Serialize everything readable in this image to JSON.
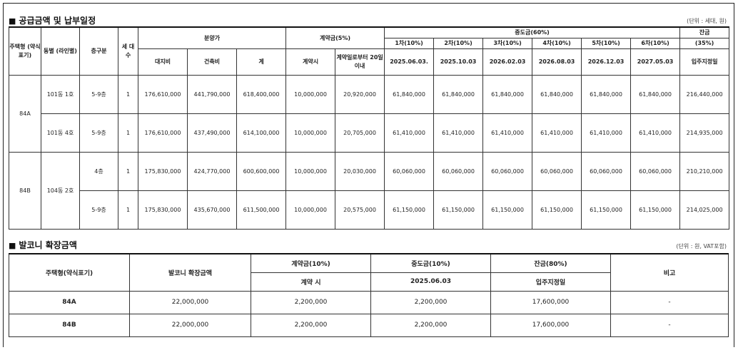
{
  "supply": {
    "title": "공급금액 및 납부일정",
    "unit": "(단위 : 세대, 원)",
    "headers": {
      "type": "주택형 (약식 표기)",
      "dong": "동별 (라인별)",
      "floor": "층구분",
      "households": "세 대 수",
      "price_group": "분양가",
      "land": "대지비",
      "building": "건축비",
      "total": "계",
      "contract_group": "계약금(5%)",
      "contract_at": "계약시",
      "contract_20": "계약일로부터 20일 이내",
      "interim_group": "중도금(60%)",
      "balance_group": "잔금",
      "balance_pct": "(35%)",
      "balance_date": "입주지정일"
    },
    "interim": [
      {
        "label": "1차(10%)",
        "date": "2025.06.03."
      },
      {
        "label": "2차(10%)",
        "date": "2025.10.03"
      },
      {
        "label": "3차(10%)",
        "date": "2026.02.03"
      },
      {
        "label": "4차(10%)",
        "date": "2026.08.03"
      },
      {
        "label": "5차(10%)",
        "date": "2026.12.03"
      },
      {
        "label": "6차(10%)",
        "date": "2027.05.03"
      }
    ],
    "groups": [
      {
        "type": "84A",
        "rows": [
          {
            "dong": "101동 1호",
            "floor": "5-9층",
            "households": "1",
            "land": "176,610,000",
            "building": "441,790,000",
            "total": "618,400,000",
            "contract_at": "10,000,000",
            "contract_20": "20,920,000",
            "interim": [
              "61,840,000",
              "61,840,000",
              "61,840,000",
              "61,840,000",
              "61,840,000",
              "61,840,000"
            ],
            "balance": "216,440,000"
          },
          {
            "dong": "101동 4호",
            "floor": "5-9층",
            "households": "1",
            "land": "176,610,000",
            "building": "437,490,000",
            "total": "614,100,000",
            "contract_at": "10,000,000",
            "contract_20": "20,705,000",
            "interim": [
              "61,410,000",
              "61,410,000",
              "61,410,000",
              "61,410,000",
              "61,410,000",
              "61,410,000"
            ],
            "balance": "214,935,000"
          }
        ]
      },
      {
        "type": "84B",
        "dong": "104동 2호",
        "rows": [
          {
            "floor": "4층",
            "households": "1",
            "land": "175,830,000",
            "building": "424,770,000",
            "total": "600,600,000",
            "contract_at": "10,000,000",
            "contract_20": "20,030,000",
            "interim": [
              "60,060,000",
              "60,060,000",
              "60,060,000",
              "60,060,000",
              "60,060,000",
              "60,060,000"
            ],
            "balance": "210,210,000"
          },
          {
            "floor": "5-9층",
            "households": "1",
            "land": "175,830,000",
            "building": "435,670,000",
            "total": "611,500,000",
            "contract_at": "10,000,000",
            "contract_20": "20,575,000",
            "interim": [
              "61,150,000",
              "61,150,000",
              "61,150,000",
              "61,150,000",
              "61,150,000",
              "61,150,000"
            ],
            "balance": "214,025,000"
          }
        ]
      }
    ]
  },
  "balcony": {
    "title": "발코니 확장금액",
    "unit": "(단위 : 원, VAT포함)",
    "headers": {
      "type": "주택형(약식표기)",
      "amount": "발코니 확장금액",
      "contract": "계약금(10%)",
      "contract_sub": "계약 시",
      "interim": "중도금(10%)",
      "interim_sub": "2025.06.03",
      "balance": "잔금(80%)",
      "balance_sub": "입주지정일",
      "note": "비고"
    },
    "rows": [
      {
        "type": "84A",
        "amount": "22,000,000",
        "contract": "2,200,000",
        "interim": "2,200,000",
        "balance": "17,600,000",
        "note": "-"
      },
      {
        "type": "84B",
        "amount": "22,000,000",
        "contract": "2,200,000",
        "interim": "2,200,000",
        "balance": "17,600,000",
        "note": "-"
      }
    ]
  }
}
